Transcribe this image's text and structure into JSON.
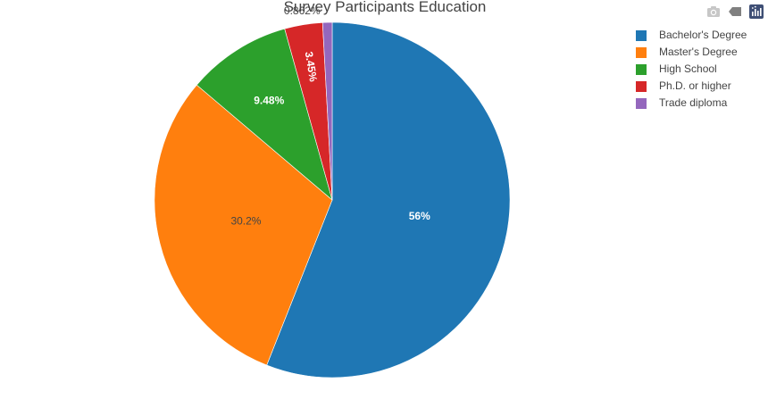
{
  "chart_data": {
    "type": "pie",
    "title": "Survey Participants Education",
    "labels": [
      "Bachelor's Degree",
      "Master's Degree",
      "High School",
      "Ph.D. or higher",
      "Trade diploma"
    ],
    "values": [
      56.0,
      30.2,
      9.48,
      3.45,
      0.862
    ],
    "value_labels": [
      "56%",
      "30.2%",
      "9.48%",
      "3.45%",
      "0.862%"
    ],
    "colors": [
      "#1f77b4",
      "#ff7f0e",
      "#2ca02c",
      "#d62728",
      "#9467bd"
    ],
    "legend": "right",
    "start_angle_deg": 0,
    "direction": "clockwise"
  },
  "modebar": {
    "icons": [
      "camera-icon",
      "autoscale-icon",
      "plotly-logo-icon"
    ]
  }
}
